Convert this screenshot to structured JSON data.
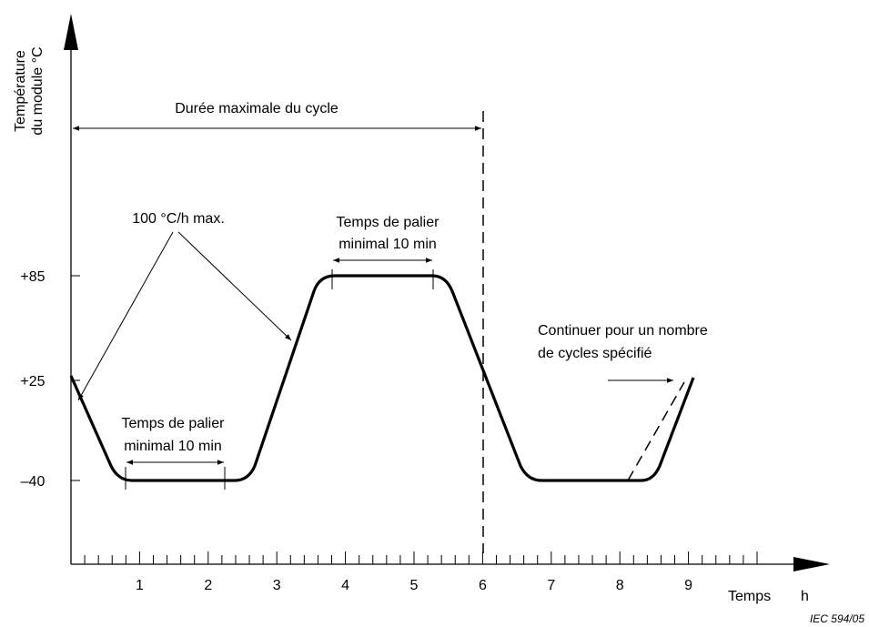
{
  "y_axis": {
    "label_line1": "Température",
    "label_line2": "du module  °C",
    "ticks": [
      "+85",
      "+25",
      "–40"
    ]
  },
  "x_axis": {
    "ticks": [
      "1",
      "2",
      "3",
      "4",
      "5",
      "6",
      "7",
      "8",
      "9"
    ],
    "label": "Temps",
    "unit": "h"
  },
  "annotations": {
    "cycle": "Durée maximale du cycle",
    "rate": "100 °C/h max.",
    "dwell_high": [
      "Temps de palier",
      "minimal 10 min"
    ],
    "dwell_low": [
      "Temps de palier",
      "minimal 10 min"
    ],
    "continue": [
      "Continuer pour un nombre",
      "de cycles spécifié"
    ]
  },
  "figure_id": "IEC   594/05"
}
